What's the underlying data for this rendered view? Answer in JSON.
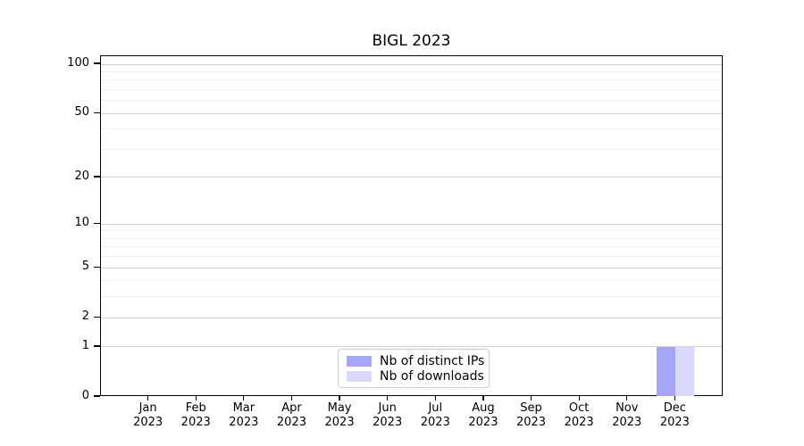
{
  "title": "BIGL 2023",
  "chart_data": {
    "type": "bar",
    "title": "BIGL 2023",
    "xlabel": "",
    "ylabel": "",
    "categories": [
      "Jan",
      "Feb",
      "Mar",
      "Apr",
      "May",
      "Jun",
      "Jul",
      "Aug",
      "Sep",
      "Oct",
      "Nov",
      "Dec"
    ],
    "category_year_line": "2023",
    "series": [
      {
        "name": "Nb of distinct IPs",
        "color": "#a5a5fa",
        "values": [
          0,
          0,
          0,
          0,
          0,
          0,
          0,
          0,
          0,
          0,
          0,
          1
        ]
      },
      {
        "name": "Nb of downloads",
        "color": "#d9d9fc",
        "values": [
          0,
          0,
          0,
          0,
          0,
          0,
          0,
          0,
          0,
          0,
          0,
          1
        ]
      }
    ],
    "y_scale": "log1p",
    "ylim": [
      0,
      112
    ],
    "y_ticks": [
      0,
      1,
      2,
      5,
      10,
      20,
      50,
      100
    ],
    "y_minor_gridlines": [
      3,
      4,
      6,
      7,
      8,
      9,
      30,
      40,
      60,
      70,
      80,
      90
    ],
    "grid": true,
    "legend_position": "lower center",
    "colors": {
      "axis": "#000000",
      "major_grid": "#d2d2d2",
      "minor_grid": "#efefef",
      "legend_border": "#cccccc"
    }
  }
}
